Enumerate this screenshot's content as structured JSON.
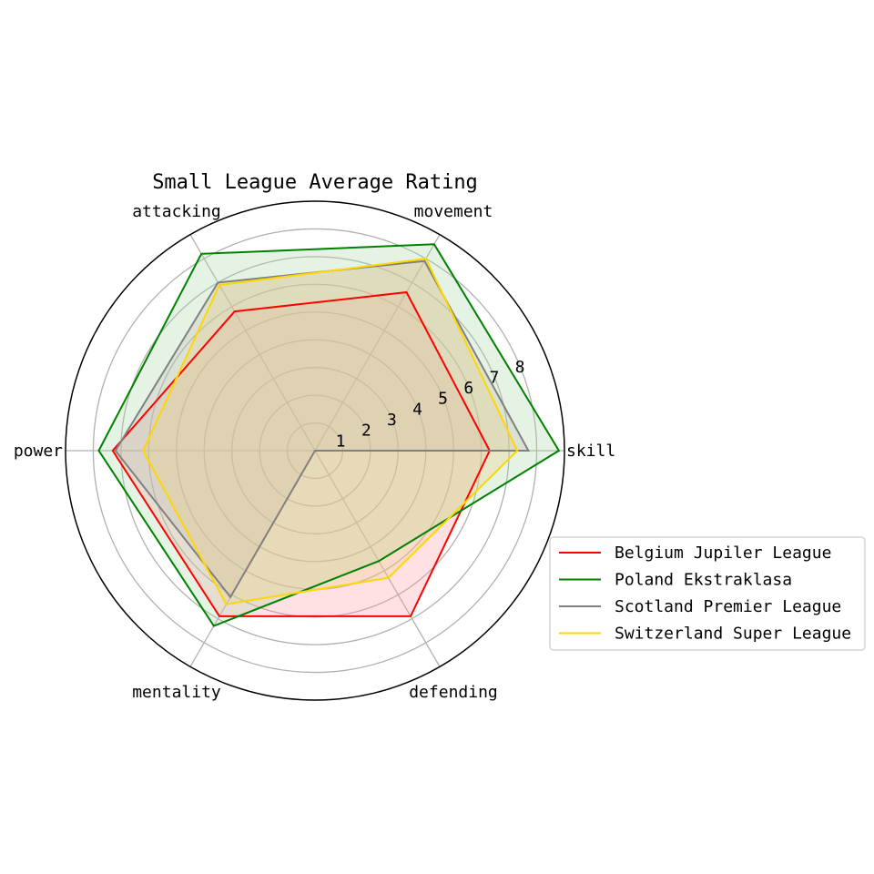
{
  "chart_data": {
    "type": "radar",
    "title": "Small League Average Rating",
    "axes": [
      "skill",
      "movement",
      "attacking",
      "power",
      "mentality",
      "defending"
    ],
    "r_ticks": [
      "1",
      "2",
      "3",
      "4",
      "5",
      "6",
      "7",
      "8"
    ],
    "r_max": 9,
    "grid": true,
    "legend_position": "right",
    "series": [
      {
        "name": "Belgium Jupiler League",
        "color": "#ff0000",
        "fill": "#ff9aa2",
        "values": [
          6.3,
          6.6,
          5.8,
          7.3,
          6.9,
          6.9
        ]
      },
      {
        "name": "Poland Ekstraklasa",
        "color": "#008000",
        "fill": "#a8d8a8",
        "values": [
          8.8,
          8.6,
          8.2,
          7.8,
          7.3,
          4.6
        ]
      },
      {
        "name": "Scotland Premier League",
        "color": "#808080",
        "fill": "#c0b8b0",
        "values": [
          7.7,
          7.9,
          7.0,
          7.2,
          6.1,
          0.0
        ]
      },
      {
        "name": "Switzerland Super League",
        "color": "#ffd700",
        "fill": "#e8cf80",
        "values": [
          7.3,
          8.0,
          6.9,
          6.2,
          6.4,
          5.3
        ]
      }
    ]
  }
}
